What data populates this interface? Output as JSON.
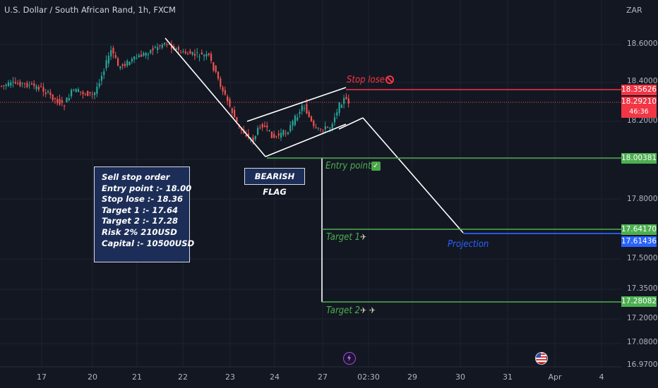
{
  "header": {
    "title": "U.S. Dollar / South African Rand, 1h, FXCM"
  },
  "currency_label": "ZAR",
  "price_axis": {
    "ticks": [
      "18.60000",
      "18.40000",
      "18.20000",
      "17.80000",
      "17.50000",
      "17.35000",
      "17.20000",
      "17.08000",
      "16.97000"
    ]
  },
  "time_axis": {
    "ticks": [
      "17",
      "20",
      "21",
      "22",
      "23",
      "24",
      "27",
      "02:30",
      "29",
      "30",
      "31",
      "Apr",
      "4"
    ]
  },
  "price_tags": {
    "stop": "18.35626",
    "current": "18.29210",
    "countdown": "46:36",
    "entry": "18.00381",
    "target1": "17.64170",
    "projection": "17.61436",
    "target2": "17.28082"
  },
  "annotations": {
    "stop_label": "Stop lose",
    "entry_label": "Entry point",
    "target1_label": "Target 1",
    "target2_label": "Target 2",
    "projection_label": "Projection",
    "pattern_label": "BEARISH FLAG"
  },
  "info_box": {
    "lines": [
      "Sell stop order",
      "Entry point :- 18.00",
      "Stop lose :- 18.36",
      "Target 1 :- 17.64",
      "Target 2 :- 17.28",
      "Risk 2% 210USD",
      "Capital :- 10500USD"
    ]
  },
  "colors": {
    "background": "#131722",
    "up": "#26a69a",
    "down": "#ef5350",
    "stop_line": "#f23645",
    "target_line": "#4caf50",
    "projection_line": "#2962ff",
    "annotation_box": "#1c2e57"
  },
  "icons": [
    "no-entry-icon",
    "check-mark-icon",
    "satellite-icon",
    "lightning-event-icon",
    "us-flag-event-icon"
  ]
}
